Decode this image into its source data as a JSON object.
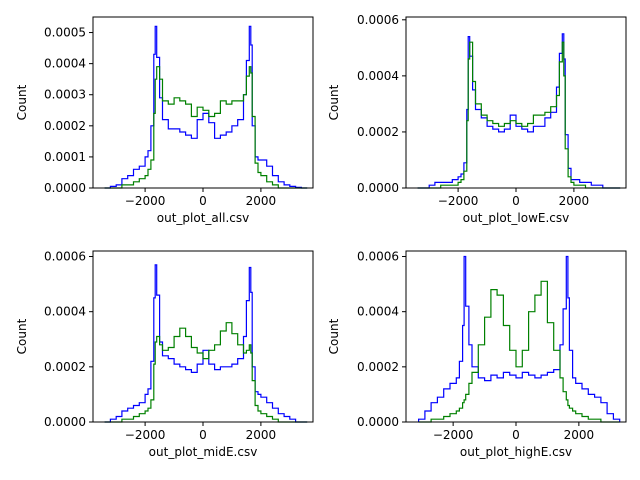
{
  "figure": {
    "background": "#ffffff",
    "colors": {
      "blue_series": "#0000ff",
      "green_series": "#008000",
      "axes": "#000000"
    }
  },
  "chart_data": [
    {
      "type": "histogram-step",
      "xlabel": "out_plot_all.csv",
      "ylabel": "Count",
      "xlim": [
        -3800,
        3800
      ],
      "ylim": [
        0,
        0.00055
      ],
      "xticks": [
        -2000,
        0,
        2000
      ],
      "xtick_labels": [
        "−2000",
        "0",
        "2000"
      ],
      "yticks": [
        0,
        0.0001,
        0.0002,
        0.0003,
        0.0004,
        0.0005
      ],
      "ytick_labels": [
        "0.0000",
        "0.0001",
        "0.0002",
        "0.0003",
        "0.0004",
        "0.0005"
      ],
      "grid": false,
      "series": [
        {
          "color": "#0000ff",
          "x": [
            -3400,
            -3200,
            -3000,
            -2800,
            -2600,
            -2400,
            -2200,
            -2000,
            -1900,
            -1800,
            -1700,
            -1650,
            -1600,
            -1500,
            -1400,
            -1200,
            -1000,
            -800,
            -600,
            -400,
            -200,
            0,
            200,
            400,
            600,
            800,
            1000,
            1200,
            1400,
            1500,
            1600,
            1650,
            1700,
            1800,
            1900,
            2000,
            2200,
            2400,
            2600,
            2800,
            3000,
            3200,
            3400
          ],
          "y": [
            0,
            5e-06,
            1e-05,
            3e-05,
            4e-05,
            6e-05,
            7e-05,
            0.0001,
            0.00012,
            0.0002,
            0.00043,
            0.00052,
            0.00042,
            0.00029,
            0.00022,
            0.00019,
            0.00019,
            0.00018,
            0.00017,
            0.00016,
            0.00022,
            0.00024,
            0.00021,
            0.00016,
            0.00017,
            0.00018,
            0.0002,
            0.00022,
            0.0003,
            0.00041,
            0.00052,
            0.00046,
            0.0002,
            0.0001,
            9e-05,
            9e-05,
            7e-05,
            4e-05,
            2e-05,
            1e-05,
            5e-06,
            2e-06,
            0
          ]
        },
        {
          "color": "#008000",
          "x": [
            -3400,
            -3200,
            -3000,
            -2800,
            -2600,
            -2400,
            -2200,
            -2000,
            -1900,
            -1800,
            -1700,
            -1650,
            -1600,
            -1500,
            -1400,
            -1200,
            -1000,
            -800,
            -600,
            -400,
            -200,
            0,
            200,
            400,
            600,
            800,
            1000,
            1200,
            1400,
            1500,
            1600,
            1650,
            1700,
            1800,
            1900,
            2000,
            2200,
            2400,
            2600,
            2800,
            3000,
            3200,
            3400
          ],
          "y": [
            0,
            0,
            0,
            1e-05,
            1e-05,
            2e-05,
            3e-05,
            4e-05,
            6e-05,
            9e-05,
            0.00024,
            0.00035,
            0.00039,
            0.00035,
            0.00028,
            0.00027,
            0.00029,
            0.00028,
            0.00027,
            0.00023,
            0.00026,
            0.00025,
            0.00023,
            0.00024,
            0.00028,
            0.00027,
            0.00028,
            0.00028,
            0.0003,
            0.00036,
            0.00039,
            0.00037,
            0.00023,
            8e-05,
            5e-05,
            4e-05,
            2e-05,
            1e-05,
            0,
            0,
            0,
            0,
            0
          ]
        }
      ]
    },
    {
      "type": "histogram-step",
      "xlabel": "out_plot_lowE.csv",
      "ylabel": "Count",
      "xlim": [
        -3800,
        3800
      ],
      "ylim": [
        0,
        0.00061
      ],
      "xticks": [
        -2000,
        0,
        2000
      ],
      "xtick_labels": [
        "−2000",
        "0",
        "2000"
      ],
      "yticks": [
        0,
        0.0002,
        0.0004,
        0.0006
      ],
      "ytick_labels": [
        "0.0000",
        "0.0002",
        "0.0004",
        "0.0006"
      ],
      "grid": false,
      "series": [
        {
          "color": "#0000ff",
          "x": [
            -3400,
            -3200,
            -3000,
            -2800,
            -2600,
            -2400,
            -2200,
            -2000,
            -1900,
            -1800,
            -1700,
            -1650,
            -1600,
            -1500,
            -1400,
            -1200,
            -1000,
            -800,
            -600,
            -400,
            -200,
            0,
            200,
            400,
            600,
            800,
            1000,
            1200,
            1400,
            1500,
            1600,
            1650,
            1700,
            1800,
            1900,
            2000,
            2200,
            2400,
            2600,
            2800,
            3000,
            3200,
            3400
          ],
          "y": [
            0,
            0,
            1e-05,
            2e-05,
            2e-05,
            2e-05,
            3e-05,
            4e-05,
            5e-05,
            9e-05,
            0.00028,
            0.00054,
            0.00047,
            0.00035,
            0.00028,
            0.00025,
            0.00022,
            0.00021,
            0.0002,
            0.00021,
            0.00026,
            0.00022,
            0.00021,
            0.0002,
            0.00022,
            0.00022,
            0.00025,
            0.00027,
            0.00036,
            0.00048,
            0.00055,
            0.00046,
            0.00019,
            7e-05,
            3e-05,
            3e-05,
            2e-05,
            2e-05,
            1e-05,
            1e-05,
            0,
            0,
            0
          ]
        },
        {
          "color": "#008000",
          "x": [
            -3400,
            -3200,
            -3000,
            -2800,
            -2600,
            -2400,
            -2200,
            -2000,
            -1900,
            -1800,
            -1700,
            -1650,
            -1600,
            -1500,
            -1400,
            -1200,
            -1000,
            -800,
            -600,
            -400,
            -200,
            0,
            200,
            400,
            600,
            800,
            1000,
            1200,
            1400,
            1500,
            1600,
            1650,
            1700,
            1800,
            1900,
            2000,
            2200,
            2400,
            2600,
            2800,
            3000,
            3200,
            3400
          ],
          "y": [
            0,
            0,
            0,
            0,
            1e-05,
            1e-05,
            1e-05,
            2e-05,
            3e-05,
            6e-05,
            0.00024,
            0.00046,
            0.00052,
            0.00038,
            0.0003,
            0.00026,
            0.00024,
            0.00023,
            0.00022,
            0.00023,
            0.00024,
            0.00023,
            0.00022,
            0.00023,
            0.00026,
            0.00026,
            0.00027,
            0.00029,
            0.00033,
            0.00045,
            0.00052,
            0.0004,
            0.00014,
            4e-05,
            2e-05,
            1e-05,
            1e-05,
            0,
            0,
            0,
            0,
            0,
            0
          ]
        }
      ]
    },
    {
      "type": "histogram-step",
      "xlabel": "out_plot_midE.csv",
      "ylabel": "Count",
      "xlim": [
        -3800,
        3800
      ],
      "ylim": [
        0,
        0.00062
      ],
      "xticks": [
        -2000,
        0,
        2000
      ],
      "xtick_labels": [
        "−2000",
        "0",
        "2000"
      ],
      "yticks": [
        0,
        0.0002,
        0.0004,
        0.0006
      ],
      "ytick_labels": [
        "0.0000",
        "0.0002",
        "0.0004",
        "0.0006"
      ],
      "grid": false,
      "series": [
        {
          "color": "#0000ff",
          "x": [
            -3400,
            -3200,
            -3000,
            -2800,
            -2600,
            -2400,
            -2200,
            -2000,
            -1900,
            -1800,
            -1700,
            -1650,
            -1600,
            -1500,
            -1400,
            -1200,
            -1000,
            -800,
            -600,
            -400,
            -200,
            0,
            200,
            400,
            600,
            800,
            1000,
            1200,
            1400,
            1500,
            1600,
            1650,
            1700,
            1800,
            1900,
            2000,
            2200,
            2400,
            2600,
            2800,
            3000,
            3200,
            3400
          ],
          "y": [
            0,
            1e-05,
            2e-05,
            4e-05,
            5e-05,
            6e-05,
            7e-05,
            0.0001,
            0.00012,
            0.00022,
            0.00045,
            0.00057,
            0.00046,
            0.00029,
            0.00024,
            0.00023,
            0.00021,
            0.0002,
            0.00019,
            0.00018,
            0.00021,
            0.00026,
            0.00021,
            0.00019,
            0.0002,
            0.0002,
            0.00021,
            0.00023,
            0.00031,
            0.00044,
            0.00056,
            0.00047,
            0.0002,
            0.00011,
            0.0001,
            9e-05,
            7e-05,
            5e-05,
            3e-05,
            2e-05,
            1e-05,
            0,
            0
          ]
        },
        {
          "color": "#008000",
          "x": [
            -3400,
            -3200,
            -3000,
            -2800,
            -2600,
            -2400,
            -2200,
            -2000,
            -1900,
            -1800,
            -1700,
            -1650,
            -1600,
            -1500,
            -1400,
            -1200,
            -1000,
            -800,
            -600,
            -400,
            -200,
            0,
            200,
            400,
            600,
            800,
            1000,
            1200,
            1400,
            1500,
            1600,
            1650,
            1700,
            1800,
            1900,
            2000,
            2200,
            2400,
            2600,
            2800,
            3000,
            3200,
            3400
          ],
          "y": [
            0,
            0,
            0,
            1e-05,
            1e-05,
            2e-05,
            3e-05,
            4e-05,
            5e-05,
            8e-05,
            0.00021,
            0.00029,
            0.00031,
            0.00028,
            0.00026,
            0.00027,
            0.00031,
            0.00034,
            0.00031,
            0.00027,
            0.00025,
            0.00023,
            0.00026,
            0.00028,
            0.00033,
            0.00036,
            0.00032,
            0.00028,
            0.00025,
            0.00026,
            0.00028,
            0.00025,
            0.00015,
            6e-05,
            4e-05,
            3e-05,
            2e-05,
            1e-05,
            0,
            0,
            0,
            0,
            0
          ]
        }
      ]
    },
    {
      "type": "histogram-step",
      "xlabel": "out_plot_highE.csv",
      "ylabel": "Count",
      "xlim": [
        -3500,
        3500
      ],
      "ylim": [
        0,
        0.00062
      ],
      "xticks": [
        -2000,
        0,
        2000
      ],
      "xtick_labels": [
        "−2000",
        "0",
        "2000"
      ],
      "yticks": [
        0,
        0.0002,
        0.0004,
        0.0006
      ],
      "ytick_labels": [
        "0.0000",
        "0.0002",
        "0.0004",
        "0.0006"
      ],
      "grid": false,
      "series": [
        {
          "color": "#0000ff",
          "x": [
            -3100,
            -2900,
            -2700,
            -2500,
            -2300,
            -2100,
            -1900,
            -1800,
            -1700,
            -1650,
            -1600,
            -1500,
            -1400,
            -1200,
            -1000,
            -800,
            -600,
            -400,
            -200,
            0,
            200,
            400,
            600,
            800,
            1000,
            1200,
            1400,
            1500,
            1600,
            1650,
            1700,
            1800,
            1900,
            2100,
            2300,
            2500,
            2700,
            2900,
            3100
          ],
          "y": [
            1e-05,
            4e-05,
            7e-05,
            9e-05,
            0.00012,
            0.00014,
            0.00016,
            0.00022,
            0.00035,
            0.0006,
            0.00042,
            0.00028,
            0.0002,
            0.00016,
            0.00015,
            0.00017,
            0.00016,
            0.00018,
            0.00017,
            0.00016,
            0.00018,
            0.00017,
            0.00016,
            0.00017,
            0.00018,
            0.00019,
            0.00028,
            0.00041,
            0.0006,
            0.00045,
            0.00026,
            0.00016,
            0.00014,
            0.00012,
            0.0001,
            9e-05,
            7e-05,
            3e-05,
            1e-05
          ]
        },
        {
          "color": "#008000",
          "x": [
            -3100,
            -2900,
            -2700,
            -2500,
            -2300,
            -2100,
            -1900,
            -1800,
            -1700,
            -1650,
            -1600,
            -1500,
            -1400,
            -1200,
            -1000,
            -800,
            -600,
            -400,
            -200,
            0,
            200,
            400,
            600,
            800,
            1000,
            1200,
            1400,
            1500,
            1600,
            1650,
            1700,
            1800,
            1900,
            2100,
            2300,
            2500,
            2700,
            2900,
            3100
          ],
          "y": [
            0,
            0,
            1e-05,
            1e-05,
            2e-05,
            3e-05,
            4e-05,
            5e-05,
            7e-05,
            8e-05,
            0.0001,
            0.00014,
            0.00018,
            0.00028,
            0.00038,
            0.00048,
            0.00046,
            0.00035,
            0.00026,
            0.0002,
            0.00026,
            0.0004,
            0.00046,
            0.00051,
            0.00036,
            0.00026,
            0.00016,
            0.00011,
            8e-05,
            6e-05,
            5e-05,
            4e-05,
            3e-05,
            2e-05,
            1e-05,
            1e-05,
            0,
            0,
            0
          ]
        }
      ]
    }
  ]
}
